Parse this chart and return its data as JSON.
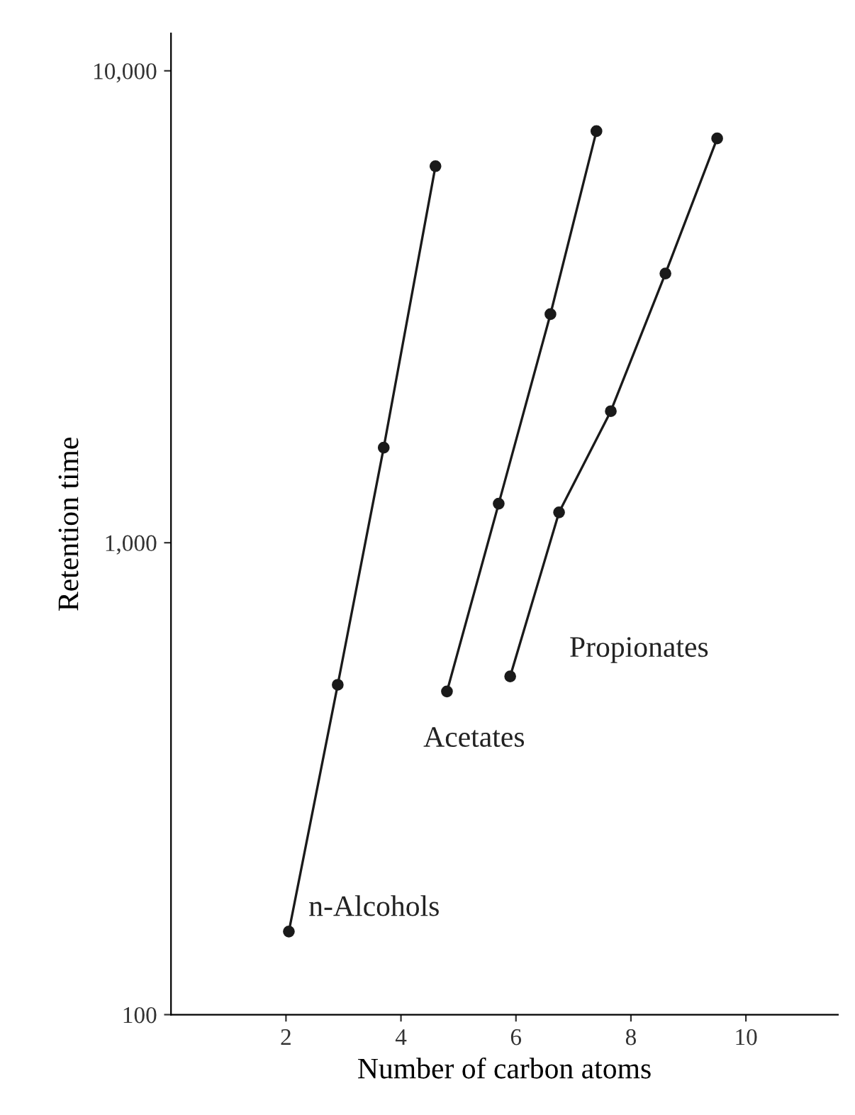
{
  "chart_data": {
    "type": "line",
    "xlabel": "Number of carbon atoms",
    "ylabel": "Retention time",
    "log": "y",
    "marker": "circle",
    "line_style": "solid",
    "grid": false,
    "legend": false,
    "xlim": [
      0,
      11.6
    ],
    "xticks": [
      2,
      4,
      6,
      8,
      10
    ],
    "ylim": [
      100,
      12000
    ],
    "yticks": [
      {
        "value": 100,
        "label": "100"
      },
      {
        "value": 1000,
        "label": "1,000"
      },
      {
        "value": 10000,
        "label": "10,000"
      }
    ],
    "series": [
      {
        "name": "n-Alcohols",
        "color": "#1a1a1a",
        "x": [
          2.05,
          2.9,
          3.7,
          4.6
        ],
        "values": [
          150,
          500,
          1590,
          6280
        ]
      },
      {
        "name": "Acetates",
        "color": "#1a1a1a",
        "x": [
          4.8,
          5.7,
          6.6,
          7.4
        ],
        "values": [
          484,
          1210,
          3050,
          7450
        ]
      },
      {
        "name": "Propionates",
        "color": "#1a1a1a",
        "x": [
          5.9,
          6.75,
          7.65,
          8.6,
          9.5
        ],
        "values": [
          521,
          1160,
          1900,
          3720,
          7190
        ]
      }
    ]
  }
}
